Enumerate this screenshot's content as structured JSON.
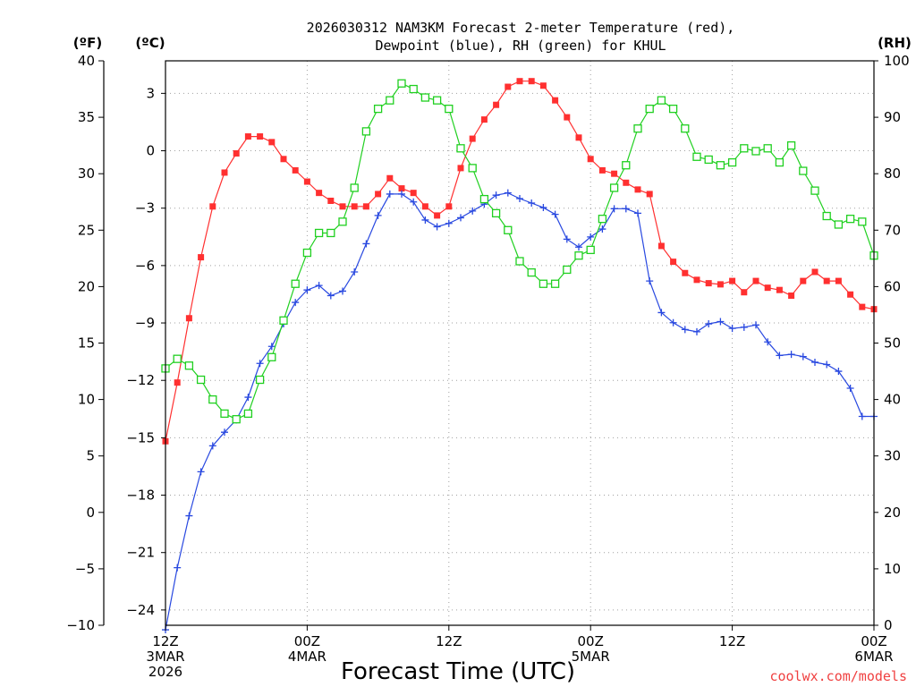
{
  "chart_data": {
    "type": "line",
    "title_line1": "2026030312 NAM3KM Forecast 2-meter Temperature (red),",
    "title_line2": "Dewpoint (blue), RH (green) for KHUL",
    "xlabel": "Forecast Time (UTC)",
    "watermark": "coolwx.com/models",
    "colors": {
      "temperature": "#ff3030",
      "dewpoint": "#2848e0",
      "rh": "#20d020",
      "grid": "#a0a0a0",
      "axis": "#000000"
    },
    "axes": {
      "fahrenheit": {
        "label": "(ºF)",
        "range": [
          -10,
          40
        ],
        "ticks": [
          "−10",
          "−5",
          "0",
          "5",
          "10",
          "15",
          "20",
          "25",
          "30",
          "35",
          "40"
        ]
      },
      "celsius": {
        "label": "(ºC)",
        "range": [
          -24.8,
          4.7
        ],
        "ticks": [
          "−24",
          "−21",
          "−18",
          "−15",
          "−12",
          "−9",
          "−6",
          "−3",
          "0",
          "3"
        ]
      },
      "rh": {
        "label": "(RH)",
        "range": [
          0,
          100
        ],
        "ticks": [
          "0",
          "10",
          "20",
          "30",
          "40",
          "50",
          "60",
          "70",
          "80",
          "90",
          "100"
        ]
      },
      "x": {
        "range_hours": [
          0,
          60
        ],
        "ticks": [
          {
            "hour": 0,
            "line1": "12Z",
            "line2": "3MAR",
            "line3": "2026"
          },
          {
            "hour": 12,
            "line1": "00Z",
            "line2": "4MAR",
            "line3": ""
          },
          {
            "hour": 24,
            "line1": "12Z",
            "line2": "",
            "line3": ""
          },
          {
            "hour": 36,
            "line1": "00Z",
            "line2": "5MAR",
            "line3": ""
          },
          {
            "hour": 48,
            "line1": "12Z",
            "line2": "",
            "line3": ""
          },
          {
            "hour": 60,
            "line1": "00Z",
            "line2": "6MAR",
            "line3": ""
          }
        ]
      }
    },
    "hours": [
      0,
      1,
      2,
      3,
      4,
      5,
      6,
      7,
      8,
      9,
      10,
      11,
      12,
      13,
      14,
      15,
      16,
      17,
      18,
      19,
      20,
      21,
      22,
      23,
      24,
      25,
      26,
      27,
      28,
      29,
      30,
      31,
      32,
      33,
      34,
      35,
      36,
      37,
      38,
      39,
      40,
      41,
      42,
      43,
      44,
      45,
      46,
      47,
      48,
      49,
      50,
      51,
      52,
      53,
      54,
      55,
      56,
      57,
      58,
      59,
      60
    ],
    "series": [
      {
        "name": "Temperature",
        "unit": "°F",
        "axis": "fahrenheit",
        "marker": "filled-square",
        "values": [
          6.3,
          11.5,
          17.2,
          22.6,
          27.1,
          30.1,
          31.8,
          33.3,
          33.3,
          32.8,
          31.3,
          30.3,
          29.3,
          28.3,
          27.6,
          27.1,
          27.1,
          27.1,
          28.2,
          29.6,
          28.7,
          28.3,
          27.1,
          26.3,
          27.1,
          30.5,
          33.1,
          34.8,
          36.1,
          37.7,
          38.2,
          38.2,
          37.8,
          36.5,
          35.0,
          33.2,
          31.3,
          30.3,
          30.0,
          29.2,
          28.6,
          28.2,
          23.6,
          22.2,
          21.2,
          20.6,
          20.3,
          20.2,
          20.5,
          19.5,
          20.5,
          19.9,
          19.7,
          19.2,
          20.5,
          21.3,
          20.5,
          20.5,
          19.3,
          18.2,
          18.0
        ]
      },
      {
        "name": "Dewpoint",
        "unit": "°F",
        "axis": "fahrenheit",
        "marker": "plus",
        "values": [
          -10.4,
          -4.9,
          -0.3,
          3.6,
          5.9,
          7.1,
          8.2,
          10.2,
          13.2,
          14.7,
          16.7,
          18.6,
          19.7,
          20.1,
          19.2,
          19.6,
          21.3,
          23.8,
          26.3,
          28.2,
          28.2,
          27.5,
          25.9,
          25.3,
          25.6,
          26.1,
          26.7,
          27.3,
          28.1,
          28.3,
          27.8,
          27.4,
          27.0,
          26.4,
          24.2,
          23.5,
          24.4,
          25.1,
          26.9,
          26.9,
          26.5,
          20.5,
          17.7,
          16.8,
          16.2,
          16.0,
          16.7,
          16.9,
          16.3,
          16.4,
          16.6,
          15.1,
          13.9,
          14.0,
          13.8,
          13.3,
          13.1,
          12.5,
          11.0,
          8.5,
          8.5
        ]
      },
      {
        "name": "RH",
        "unit": "%",
        "axis": "rh",
        "marker": "open-square",
        "values": [
          45.5,
          47.2,
          46.0,
          43.5,
          40.0,
          37.5,
          36.5,
          37.5,
          43.5,
          47.5,
          54.0,
          60.5,
          66.0,
          69.5,
          69.5,
          71.5,
          77.5,
          87.5,
          91.5,
          93.0,
          96.0,
          95.0,
          93.5,
          93.0,
          91.5,
          84.5,
          81.0,
          75.5,
          73.0,
          70.0,
          64.5,
          62.5,
          60.5,
          60.5,
          63.0,
          65.5,
          66.5,
          72.0,
          77.5,
          81.5,
          88.0,
          91.5,
          93.0,
          91.5,
          88.0,
          83.0,
          82.5,
          81.5,
          82.0,
          84.5,
          84.0,
          84.5,
          82.0,
          85.0,
          80.5,
          77.0,
          72.5,
          71.0,
          72.0,
          71.5,
          65.5
        ]
      }
    ]
  }
}
